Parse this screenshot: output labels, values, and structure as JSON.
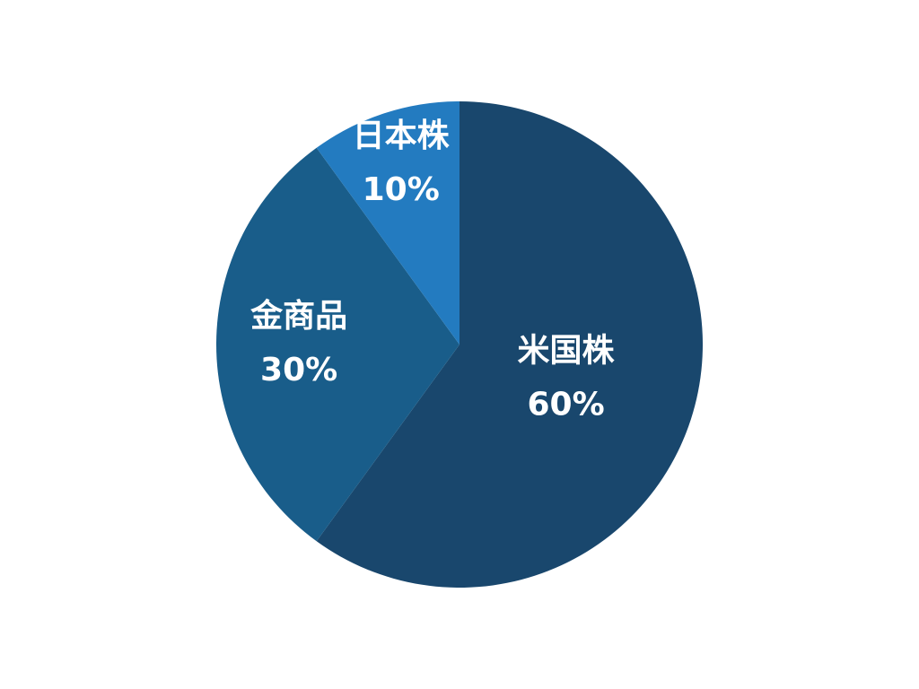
{
  "chart_data": {
    "type": "pie",
    "start": "top",
    "direction": "clockwise",
    "slices": [
      {
        "label": "米国株",
        "value": 60,
        "value_label": "60%",
        "color": "#19476d"
      },
      {
        "label": "金商品",
        "value": 30,
        "value_label": "30%",
        "color": "#195d8a"
      },
      {
        "label": "日本株",
        "value": 10,
        "value_label": "10%",
        "color": "#237bc0"
      }
    ]
  }
}
